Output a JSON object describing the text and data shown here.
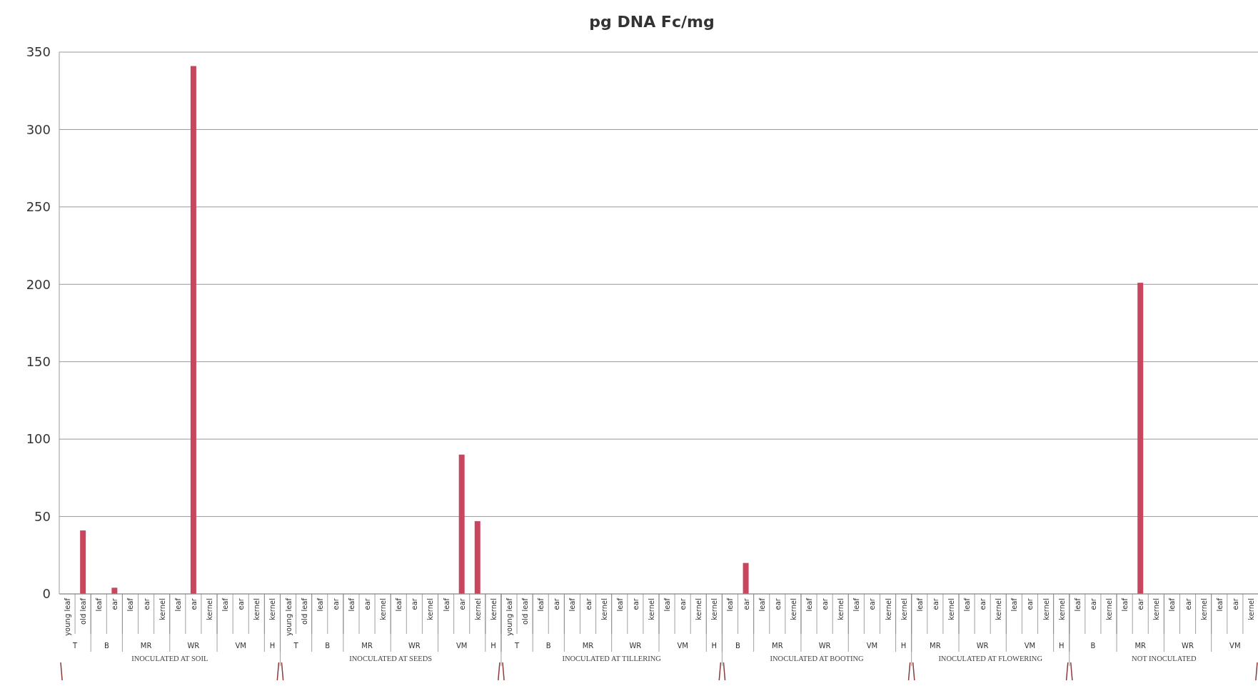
{
  "chart_data": {
    "type": "bar",
    "title": "pg DNA Fc/mg",
    "categories": [
      "young leaf",
      "old leaf",
      "leaf",
      "ear",
      "leaf",
      "ear",
      "kernel",
      "leaf",
      "ear",
      "kernel",
      "leaf",
      "ear",
      "kernel",
      "kernel",
      "young leaf",
      "old leaf",
      "leaf",
      "ear",
      "leaf",
      "ear",
      "kernel",
      "leaf",
      "ear",
      "kernel",
      "leaf",
      "ear",
      "kernel",
      "kernel",
      "young leaf",
      "old leaf",
      "leaf",
      "ear",
      "leaf",
      "ear",
      "kernel",
      "leaf",
      "ear",
      "kernel",
      "leaf",
      "ear",
      "kernel",
      "kernel",
      "leaf",
      "ear",
      "leaf",
      "ear",
      "kernel",
      "leaf",
      "ear",
      "kernel",
      "leaf",
      "ear",
      "kernel",
      "kernel",
      "leaf",
      "ear",
      "kernel",
      "leaf",
      "ear",
      "kernel",
      "leaf",
      "ear",
      "kernel",
      "kernel",
      "leaf",
      "ear",
      "kernel",
      "leaf",
      "ear",
      "kernel",
      "leaf",
      "ear",
      "kernel",
      "leaf",
      "ear",
      "kernel"
    ],
    "values": [
      0,
      41,
      0,
      4,
      0,
      0,
      0,
      0,
      341,
      0,
      0,
      0,
      0,
      0,
      0,
      0,
      0,
      0,
      0,
      0,
      0,
      0,
      0,
      0,
      0,
      90,
      47,
      0,
      0,
      0,
      0,
      0,
      0,
      0,
      0,
      0,
      0,
      0,
      0,
      0,
      0,
      0,
      0,
      20,
      0,
      0,
      0,
      0,
      0,
      0,
      0,
      0,
      0,
      0,
      0,
      0,
      0,
      0,
      0,
      0,
      0,
      0,
      0,
      0,
      0,
      0,
      0,
      0,
      201,
      0,
      0,
      0,
      0,
      0,
      0,
      0
    ],
    "color": "#c8475e",
    "ylim": [
      0,
      350
    ],
    "yticks": [
      0,
      50,
      100,
      150,
      200,
      250,
      300,
      350
    ],
    "grid": "y",
    "annotations": [
      "T",
      "B",
      "MR",
      "WR",
      "VM",
      "H",
      "INOCULATED AT SOIL",
      "T",
      "B",
      "MR",
      "WR",
      "VM",
      "H",
      "INOCULATED AT SEEDS",
      "T",
      "B",
      "MR",
      "WR",
      "VM",
      "H",
      "INOCULATED AT TILLERING",
      "B",
      "MR",
      "WR",
      "VM",
      "H",
      "INOCULATED AT BOOTING",
      "MR",
      "WR",
      "VM",
      "H",
      "INOCULATED AT FLOWERING",
      "B",
      "MR",
      "WR",
      "VM",
      "NOT INOCULATED"
    ]
  }
}
